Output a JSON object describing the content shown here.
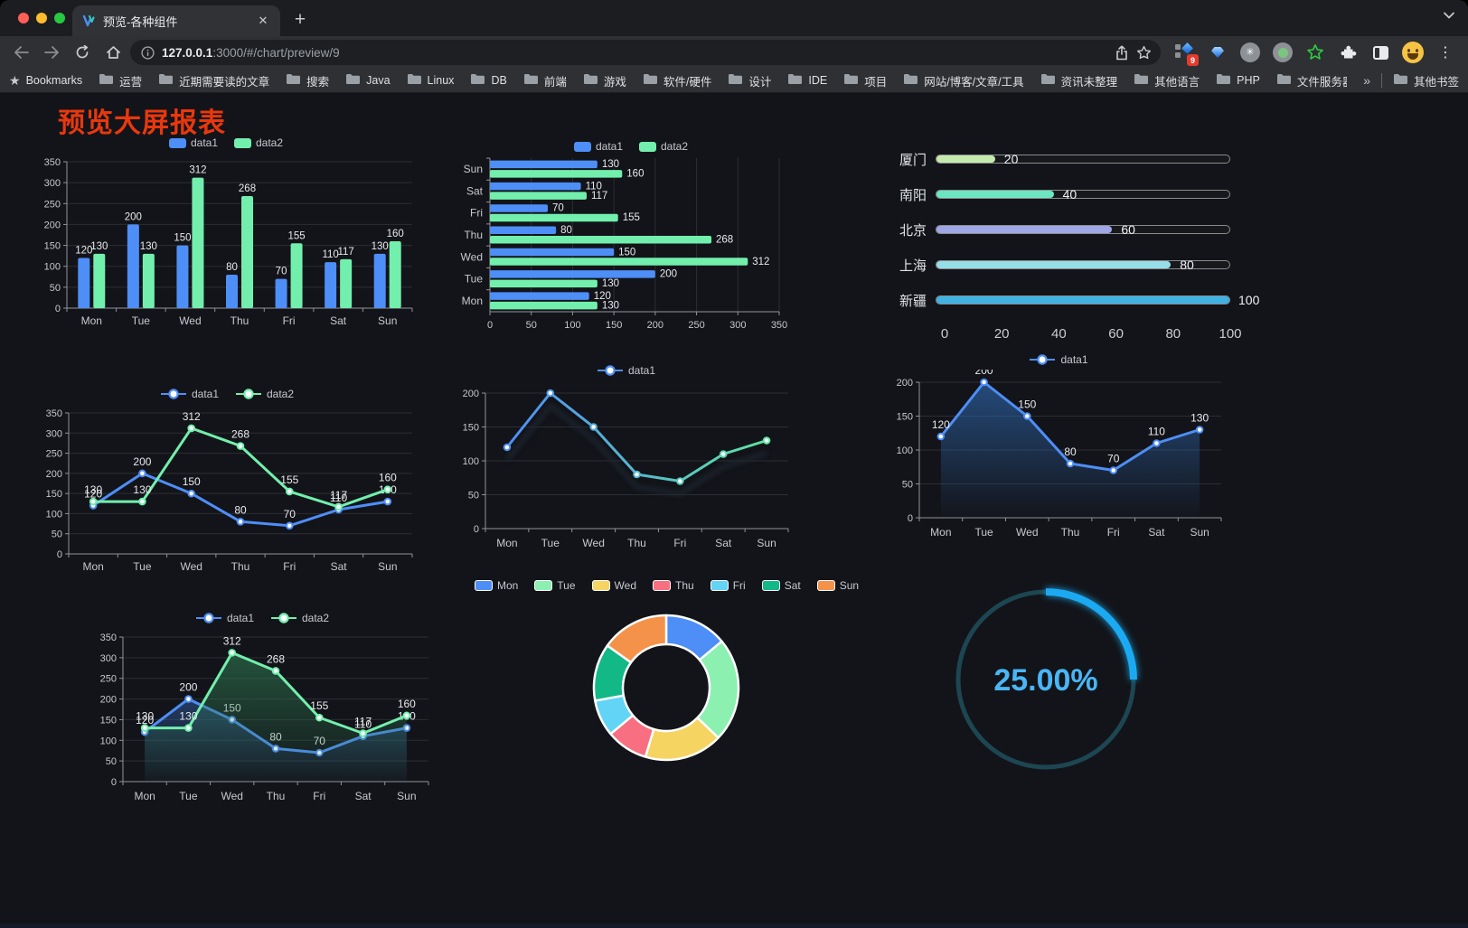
{
  "browser": {
    "tab_title": "预览-各种组件",
    "url_host": "127.0.0.1",
    "url_rest": ":3000/#/chart/preview/9",
    "close_glyph": "✕",
    "newtab_glyph": "+",
    "bookmarks_label": "Bookmarks",
    "bookmark_folders": [
      "运营",
      "近期需要读的文章",
      "搜索",
      "Java",
      "Linux",
      "DB",
      "前端",
      "游戏",
      "软件/硬件",
      "设计",
      "IDE",
      "项目",
      "网站/博客/文章/工具",
      "资讯未整理",
      "其他语言",
      "PHP",
      "文件服务器"
    ],
    "overflow_glyph": "»",
    "other_bookmarks": "其他书签",
    "extension_badge": "9",
    "kebab_glyph": "⋮"
  },
  "page": {
    "title": "预览大屏报表"
  },
  "chart_data": [
    {
      "id": "bar-vertical",
      "type": "bar",
      "categories": [
        "Mon",
        "Tue",
        "Wed",
        "Thu",
        "Fri",
        "Sat",
        "Sun"
      ],
      "series": [
        {
          "name": "data1",
          "color": "#4E8EF7",
          "values": [
            120,
            200,
            150,
            80,
            70,
            110,
            130
          ]
        },
        {
          "name": "data2",
          "color": "#72EFAD",
          "values": [
            130,
            130,
            312,
            268,
            155,
            117,
            160
          ]
        }
      ],
      "ylim": [
        0,
        350
      ],
      "ystep": 50,
      "grid": true,
      "legend_position": "top"
    },
    {
      "id": "bar-horizontal",
      "type": "hbar",
      "categories": [
        "Mon",
        "Tue",
        "Wed",
        "Thu",
        "Fri",
        "Sat",
        "Sun"
      ],
      "series": [
        {
          "name": "data1",
          "color": "#4E8EF7",
          "values": [
            120,
            200,
            150,
            80,
            70,
            110,
            130
          ]
        },
        {
          "name": "data2",
          "color": "#72EFAD",
          "values": [
            130,
            130,
            312,
            268,
            155,
            117,
            160
          ]
        }
      ],
      "xlim": [
        0,
        350
      ],
      "xstep": 50,
      "grid": true,
      "legend_position": "top"
    },
    {
      "id": "city-progress",
      "type": "progress",
      "items": [
        {
          "label": "厦门",
          "value": 20,
          "color": "#c4ebad"
        },
        {
          "label": "南阳",
          "value": 40,
          "color": "#6be6c1"
        },
        {
          "label": "北京",
          "value": 60,
          "color": "#a0a7e6"
        },
        {
          "label": "上海",
          "value": 80,
          "color": "#96dee8"
        },
        {
          "label": "新疆",
          "value": 100,
          "color": "#3fb1e3"
        }
      ],
      "max": 100,
      "xticks": [
        0,
        20,
        40,
        60,
        80,
        100
      ]
    },
    {
      "id": "line-dual",
      "type": "line",
      "categories": [
        "Mon",
        "Tue",
        "Wed",
        "Thu",
        "Fri",
        "Sat",
        "Sun"
      ],
      "series": [
        {
          "name": "data1",
          "color": "#4E8EF7",
          "values": [
            120,
            200,
            150,
            80,
            70,
            110,
            130
          ],
          "labels": true
        },
        {
          "name": "data2",
          "color": "#72EFAD",
          "values": [
            130,
            130,
            312,
            268,
            155,
            117,
            160
          ],
          "labels": true
        }
      ],
      "ylim": [
        0,
        350
      ],
      "ystep": 50,
      "grid": true,
      "legend_position": "top"
    },
    {
      "id": "line-gradient",
      "type": "line",
      "categories": [
        "Mon",
        "Tue",
        "Wed",
        "Thu",
        "Fri",
        "Sat",
        "Sun"
      ],
      "series": [
        {
          "name": "data1",
          "color": "#4E8EF7",
          "gradient": [
            "#4E8EF7",
            "#5FE3A1"
          ],
          "values": [
            120,
            200,
            150,
            80,
            70,
            110,
            130
          ],
          "labels": false,
          "shadow": true
        }
      ],
      "ylim": [
        0,
        200
      ],
      "ystep": 50,
      "grid": true,
      "legend_position": "top"
    },
    {
      "id": "area-single",
      "type": "line",
      "categories": [
        "Mon",
        "Tue",
        "Wed",
        "Thu",
        "Fri",
        "Sat",
        "Sun"
      ],
      "series": [
        {
          "name": "data1",
          "color": "#4E8EF7",
          "values": [
            120,
            200,
            150,
            80,
            70,
            110,
            130
          ],
          "labels": true,
          "area": [
            "rgba(46,104,176,0.65)",
            "rgba(46,104,176,0.02)"
          ]
        }
      ],
      "ylim": [
        0,
        200
      ],
      "ystep": 50,
      "grid": true,
      "legend_position": "top"
    },
    {
      "id": "area-dual",
      "type": "line",
      "categories": [
        "Mon",
        "Tue",
        "Wed",
        "Thu",
        "Fri",
        "Sat",
        "Sun"
      ],
      "series": [
        {
          "name": "data1",
          "color": "#4E8EF7",
          "values": [
            120,
            200,
            150,
            80,
            70,
            110,
            130
          ],
          "labels": true,
          "area": [
            "rgba(49,91,158,0.55)",
            "rgba(49,91,158,0.03)"
          ]
        },
        {
          "name": "data2",
          "color": "#72EFAD",
          "values": [
            130,
            130,
            312,
            268,
            155,
            117,
            160
          ],
          "labels": true,
          "area": [
            "rgba(47,125,84,0.60)",
            "rgba(47,125,84,0.03)"
          ]
        }
      ],
      "ylim": [
        0,
        350
      ],
      "ystep": 50,
      "grid": true,
      "legend_position": "top"
    },
    {
      "id": "donut-week",
      "type": "pie",
      "labels": [
        "Mon",
        "Tue",
        "Wed",
        "Thu",
        "Fri",
        "Sat",
        "Sun"
      ],
      "values": [
        120,
        200,
        150,
        80,
        70,
        110,
        130
      ],
      "colors": [
        "#4E8EF7",
        "#8BF0B0",
        "#F5D462",
        "#F76F80",
        "#62D4F5",
        "#12B886",
        "#F5924A"
      ],
      "legend_position": "top"
    },
    {
      "id": "gauge-percent",
      "type": "gauge",
      "value": 25,
      "label": "25.00%",
      "max": 100,
      "color": "#1BAAF2",
      "track_color": "#1C4652",
      "text_color": "#49B6F5"
    }
  ]
}
